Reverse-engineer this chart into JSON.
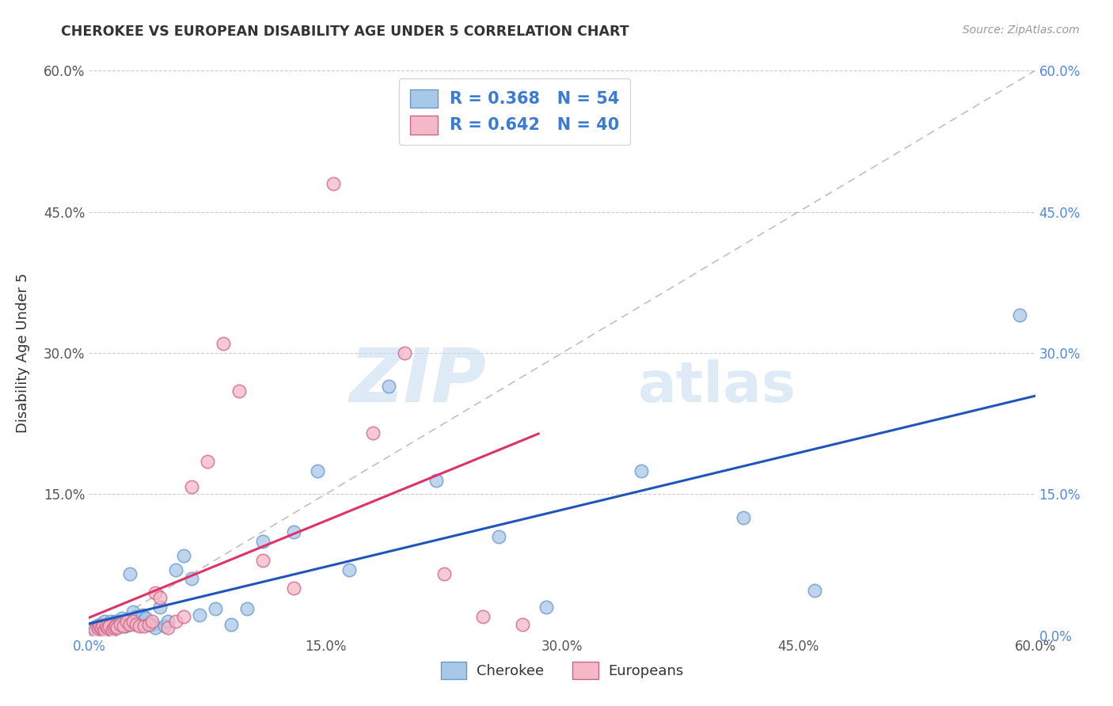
{
  "title": "CHEROKEE VS EUROPEAN DISABILITY AGE UNDER 5 CORRELATION CHART",
  "source": "Source: ZipAtlas.com",
  "ylabel": "Disability Age Under 5",
  "xlim": [
    0.0,
    0.6
  ],
  "ylim": [
    0.0,
    0.6
  ],
  "xtick_vals": [
    0.0,
    0.15,
    0.3,
    0.45,
    0.6
  ],
  "ytick_vals": [
    0.0,
    0.15,
    0.3,
    0.45,
    0.6
  ],
  "cherokee_color": "#a8c8e8",
  "cherokee_edge_color": "#6699cc",
  "european_color": "#f4b8c8",
  "european_edge_color": "#cc6688",
  "cherokee_line_color": "#2255bb",
  "european_line_color": "#dd3366",
  "cherokee_R": 0.368,
  "cherokee_N": 54,
  "european_R": 0.642,
  "european_N": 40,
  "watermark": "ZIPatlas",
  "background_color": "#ffffff",
  "grid_color": "#cccccc",
  "right_tick_color": "#5588dd",
  "bottom_x0_color": "#5588dd",
  "cherokee_scatter_x": [
    0.003,
    0.005,
    0.006,
    0.007,
    0.008,
    0.009,
    0.01,
    0.01,
    0.011,
    0.012,
    0.013,
    0.014,
    0.015,
    0.016,
    0.017,
    0.018,
    0.019,
    0.02,
    0.021,
    0.022,
    0.023,
    0.024,
    0.025,
    0.026,
    0.028,
    0.03,
    0.032,
    0.034,
    0.036,
    0.038,
    0.04,
    0.042,
    0.045,
    0.048,
    0.05,
    0.055,
    0.06,
    0.065,
    0.07,
    0.08,
    0.09,
    0.1,
    0.11,
    0.13,
    0.145,
    0.165,
    0.19,
    0.22,
    0.26,
    0.29,
    0.35,
    0.415,
    0.46,
    0.59
  ],
  "cherokee_scatter_y": [
    0.008,
    0.01,
    0.008,
    0.012,
    0.01,
    0.008,
    0.012,
    0.015,
    0.01,
    0.012,
    0.008,
    0.015,
    0.012,
    0.01,
    0.015,
    0.012,
    0.01,
    0.015,
    0.018,
    0.012,
    0.01,
    0.015,
    0.012,
    0.065,
    0.025,
    0.02,
    0.015,
    0.022,
    0.018,
    0.012,
    0.012,
    0.008,
    0.03,
    0.01,
    0.015,
    0.07,
    0.085,
    0.06,
    0.022,
    0.028,
    0.012,
    0.028,
    0.1,
    0.11,
    0.175,
    0.07,
    0.265,
    0.165,
    0.105,
    0.03,
    0.175,
    0.125,
    0.048,
    0.34
  ],
  "european_scatter_x": [
    0.004,
    0.006,
    0.007,
    0.008,
    0.009,
    0.01,
    0.011,
    0.012,
    0.013,
    0.015,
    0.016,
    0.017,
    0.018,
    0.02,
    0.022,
    0.024,
    0.026,
    0.028,
    0.03,
    0.032,
    0.035,
    0.038,
    0.04,
    0.042,
    0.045,
    0.05,
    0.055,
    0.06,
    0.065,
    0.075,
    0.085,
    0.095,
    0.11,
    0.13,
    0.155,
    0.18,
    0.2,
    0.225,
    0.25,
    0.275
  ],
  "european_scatter_y": [
    0.006,
    0.008,
    0.01,
    0.008,
    0.01,
    0.006,
    0.01,
    0.008,
    0.01,
    0.006,
    0.008,
    0.01,
    0.008,
    0.012,
    0.01,
    0.015,
    0.012,
    0.015,
    0.012,
    0.01,
    0.01,
    0.012,
    0.015,
    0.045,
    0.04,
    0.008,
    0.015,
    0.02,
    0.158,
    0.185,
    0.31,
    0.26,
    0.08,
    0.05,
    0.48,
    0.215,
    0.3,
    0.065,
    0.02,
    0.012
  ]
}
